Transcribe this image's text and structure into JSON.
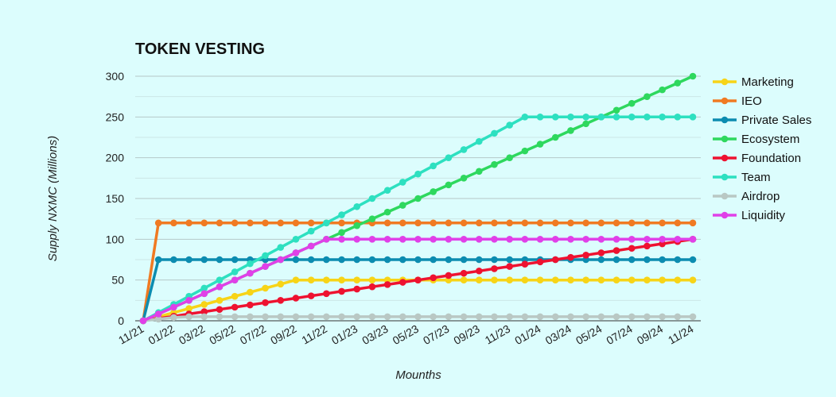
{
  "chart_data": {
    "type": "line",
    "title": "TOKEN VESTING",
    "xlabel": "Mounths",
    "ylabel": "Supply NXMC (Millions)",
    "ylim": [
      0,
      300
    ],
    "yticks": [
      0,
      50,
      100,
      150,
      200,
      250,
      300
    ],
    "grid": true,
    "legend": "right",
    "x_tick_labels": [
      "11/21",
      "01/22",
      "03/22",
      "05/22",
      "07/22",
      "09/22",
      "11/22",
      "01/23",
      "03/23",
      "05/23",
      "07/23",
      "09/23",
      "11/23",
      "01/24",
      "03/24",
      "05/24",
      "07/24",
      "09/24",
      "11/24"
    ],
    "categories": [
      "11/21",
      "12/21",
      "01/22",
      "02/22",
      "03/22",
      "04/22",
      "05/22",
      "06/22",
      "07/22",
      "08/22",
      "09/22",
      "10/22",
      "11/22",
      "12/22",
      "01/23",
      "02/23",
      "03/23",
      "04/23",
      "05/23",
      "06/23",
      "07/23",
      "08/23",
      "09/23",
      "10/23",
      "11/23",
      "12/23",
      "01/24",
      "02/24",
      "03/24",
      "04/24",
      "05/24",
      "06/24",
      "07/24",
      "08/24",
      "09/24",
      "10/24",
      "11/24"
    ],
    "series": [
      {
        "name": "Marketing",
        "color": "#f7d417",
        "values": [
          0,
          5,
          10,
          15,
          20,
          25,
          30,
          35,
          40,
          45,
          50,
          50,
          50,
          50,
          50,
          50,
          50,
          50,
          50,
          50,
          50,
          50,
          50,
          50,
          50,
          50,
          50,
          50,
          50,
          50,
          50,
          50,
          50,
          50,
          50,
          50,
          50
        ]
      },
      {
        "name": "IEO",
        "color": "#f07a22",
        "values": [
          0,
          120,
          120,
          120,
          120,
          120,
          120,
          120,
          120,
          120,
          120,
          120,
          120,
          120,
          120,
          120,
          120,
          120,
          120,
          120,
          120,
          120,
          120,
          120,
          120,
          120,
          120,
          120,
          120,
          120,
          120,
          120,
          120,
          120,
          120,
          120,
          120
        ]
      },
      {
        "name": "Private Sales",
        "color": "#0c8cb0",
        "values": [
          0,
          75,
          75,
          75,
          75,
          75,
          75,
          75,
          75,
          75,
          75,
          75,
          75,
          75,
          75,
          75,
          75,
          75,
          75,
          75,
          75,
          75,
          75,
          75,
          75,
          75,
          75,
          75,
          75,
          75,
          75,
          75,
          75,
          75,
          75,
          75,
          75
        ]
      },
      {
        "name": "Ecosystem",
        "color": "#2ed85e",
        "values": [
          0,
          8.33,
          16.67,
          25,
          33.33,
          41.67,
          50,
          58.33,
          66.67,
          75,
          83.33,
          91.67,
          100,
          108.33,
          116.67,
          125,
          133.33,
          141.67,
          150,
          158.33,
          166.67,
          175,
          183.33,
          191.67,
          200,
          208.33,
          216.67,
          225,
          233.33,
          241.67,
          250,
          258.33,
          266.67,
          275,
          283.33,
          291.67,
          300
        ]
      },
      {
        "name": "Foundation",
        "color": "#ee1230",
        "values": [
          0,
          2.78,
          5.56,
          8.33,
          11.11,
          13.89,
          16.67,
          19.44,
          22.22,
          25,
          27.78,
          30.56,
          33.33,
          36.11,
          38.89,
          41.67,
          44.44,
          47.22,
          50,
          52.78,
          55.56,
          58.33,
          61.11,
          63.89,
          66.67,
          69.44,
          72.22,
          75,
          77.78,
          80.56,
          83.33,
          86.11,
          88.89,
          91.67,
          94.44,
          97.22,
          100
        ]
      },
      {
        "name": "Team",
        "color": "#2de0c0",
        "values": [
          0,
          10,
          20,
          30,
          40,
          50,
          60,
          70,
          80,
          90,
          100,
          110,
          120,
          130,
          140,
          150,
          160,
          170,
          180,
          190,
          200,
          210,
          220,
          230,
          240,
          250,
          250,
          250,
          250,
          250,
          250,
          250,
          250,
          250,
          250,
          250,
          250
        ]
      },
      {
        "name": "Airdrop",
        "color": "#b9c8c4",
        "values": [
          0,
          2,
          4,
          5,
          5,
          5,
          5,
          5,
          5,
          5,
          5,
          5,
          5,
          5,
          5,
          5,
          5,
          5,
          5,
          5,
          5,
          5,
          5,
          5,
          5,
          5,
          5,
          5,
          5,
          5,
          5,
          5,
          5,
          5,
          5,
          5,
          5
        ]
      },
      {
        "name": "Liquidity",
        "color": "#e040e8",
        "values": [
          0,
          8.33,
          16.67,
          25,
          33.33,
          41.67,
          50,
          58.33,
          66.67,
          75,
          83.33,
          91.67,
          100,
          100,
          100,
          100,
          100,
          100,
          100,
          100,
          100,
          100,
          100,
          100,
          100,
          100,
          100,
          100,
          100,
          100,
          100,
          100,
          100,
          100,
          100,
          100,
          100
        ]
      }
    ]
  }
}
